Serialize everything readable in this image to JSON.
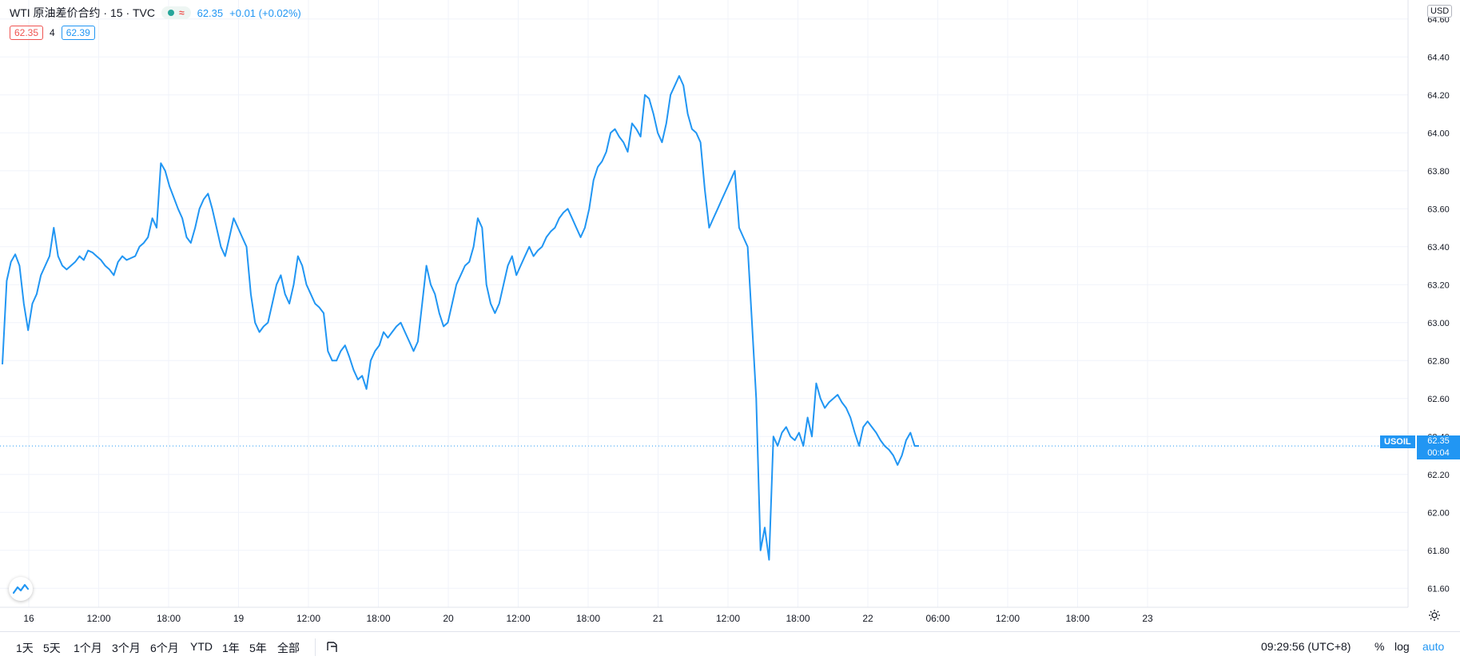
{
  "legend": {
    "symbol_title": "WTI 原油差价合约 · 15 · TVC",
    "wave_icon": "≈",
    "price": "62.35",
    "change": "+0.01 (+0.02%)"
  },
  "bidask": {
    "bid": "62.35",
    "spread": "4",
    "ask": "62.39"
  },
  "currency": "USD",
  "last_price": {
    "symbol": "USOIL",
    "price": "62.35",
    "countdown": "00:04"
  },
  "bottom_bar": {
    "ranges": [
      "1天",
      "5天",
      "1个月",
      "3个月",
      "6个月",
      "YTD",
      "1年",
      "5年",
      "全部"
    ],
    "time": "09:29:56 (UTC+8)",
    "options": [
      "%",
      "log",
      "auto"
    ]
  },
  "colors": {
    "line": "#2196f3",
    "grid": "#f0f3fa",
    "bid": "#ef5350",
    "ask": "#2196f3"
  },
  "icons": [
    "tradingview-logo-icon",
    "compare-icon",
    "settings-gear-icon"
  ],
  "chart_data": {
    "type": "line",
    "series": [
      {
        "values": [
          62.78,
          63.22,
          63.32,
          63.36,
          63.3,
          63.1,
          62.96,
          63.1,
          63.15,
          63.25,
          63.3,
          63.35,
          63.5,
          63.35,
          63.3,
          63.28,
          63.3,
          63.32,
          63.35,
          63.33,
          63.38,
          63.37,
          63.35,
          63.33,
          63.3,
          63.28,
          63.25,
          63.32,
          63.35,
          63.33,
          63.34,
          63.35,
          63.4,
          63.42,
          63.45,
          63.55,
          63.5,
          63.84,
          63.8,
          63.72,
          63.66,
          63.6,
          63.55,
          63.45,
          63.42,
          63.5,
          63.6,
          63.65,
          63.68,
          63.6,
          63.5,
          63.4,
          63.35,
          63.45,
          63.55,
          63.5,
          63.45,
          63.4,
          63.15,
          63.0,
          62.95,
          62.98,
          63.0,
          63.1,
          63.2,
          63.25,
          63.15,
          63.1,
          63.2,
          63.35,
          63.3,
          63.2,
          63.15,
          63.1,
          63.08,
          63.05,
          62.85,
          62.8,
          62.8,
          62.85,
          62.88,
          62.82,
          62.75,
          62.7,
          62.72,
          62.65,
          62.8,
          62.85,
          62.88,
          62.95,
          62.92,
          62.95,
          62.98,
          63.0,
          62.95,
          62.9,
          62.85,
          62.9,
          63.1,
          63.3,
          63.2,
          63.15,
          63.05,
          62.98,
          63.0,
          63.1,
          63.2,
          63.25,
          63.3,
          63.32,
          63.4,
          63.55,
          63.5,
          63.2,
          63.1,
          63.05,
          63.1,
          63.2,
          63.3,
          63.35,
          63.25,
          63.3,
          63.35,
          63.4,
          63.35,
          63.38,
          63.4,
          63.45,
          63.48,
          63.5,
          63.55,
          63.58,
          63.6,
          63.55,
          63.5,
          63.45,
          63.5,
          63.6,
          63.75,
          63.82,
          63.85,
          63.9,
          64.0,
          64.02,
          63.98,
          63.95,
          63.9,
          64.05,
          64.02,
          63.98,
          64.2,
          64.18,
          64.1,
          64.0,
          63.95,
          64.05,
          64.2,
          64.25,
          64.3,
          64.25,
          64.1,
          64.02,
          64.0,
          63.95,
          63.7,
          63.5,
          63.55,
          63.6,
          63.65,
          63.7,
          63.75,
          63.8,
          63.5,
          63.45,
          63.4,
          63.0,
          62.6,
          61.8,
          61.92,
          61.75,
          62.4,
          62.35,
          62.42,
          62.45,
          62.4,
          62.38,
          62.42,
          62.35,
          62.5,
          62.4,
          62.68,
          62.6,
          62.55,
          62.58,
          62.6,
          62.62,
          62.58,
          62.55,
          62.5,
          62.42,
          62.35,
          62.45,
          62.48,
          62.45,
          62.42,
          62.38,
          62.35,
          62.33,
          62.3,
          62.25,
          62.3,
          62.38,
          62.42,
          62.35,
          62.35
        ]
      }
    ],
    "x_tick_labels": [
      "16",
      "12:00",
      "18:00",
      "19",
      "12:00",
      "18:00",
      "20",
      "12:00",
      "18:00",
      "21",
      "12:00",
      "18:00",
      "22",
      "06:00",
      "12:00",
      "18:00",
      "23"
    ],
    "y_tick_labels": [
      "61.60",
      "61.80",
      "62.00",
      "62.20",
      "62.40",
      "62.60",
      "62.80",
      "63.00",
      "63.20",
      "63.40",
      "63.60",
      "63.80",
      "64.00",
      "64.20",
      "64.40",
      "64.60"
    ],
    "ylim": [
      61.5,
      64.7
    ],
    "last_value": 62.35,
    "grid": true
  }
}
